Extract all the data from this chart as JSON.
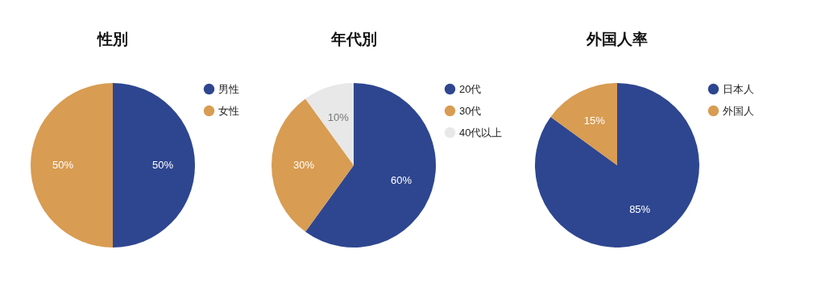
{
  "chart_data": [
    {
      "type": "pie",
      "title": "性別",
      "categories": [
        "男性",
        "女性"
      ],
      "values": [
        50,
        50
      ],
      "colors": [
        "#2e4690",
        "#d89c52"
      ],
      "value_labels": [
        "50%",
        "50%"
      ],
      "legend": "right"
    },
    {
      "type": "pie",
      "title": "年代別",
      "categories": [
        "20代",
        "30代",
        "40代以上"
      ],
      "values": [
        60,
        30,
        10
      ],
      "colors": [
        "#2e4690",
        "#d89c52",
        "#e8e8e8"
      ],
      "value_labels": [
        "60%",
        "30%",
        "10%"
      ],
      "legend": "right"
    },
    {
      "type": "pie",
      "title": "外国人率",
      "categories": [
        "日本人",
        "外国人"
      ],
      "values": [
        85,
        15
      ],
      "colors": [
        "#2e4690",
        "#d89c52"
      ],
      "value_labels": [
        "85%",
        "15%"
      ],
      "legend": "right"
    }
  ]
}
